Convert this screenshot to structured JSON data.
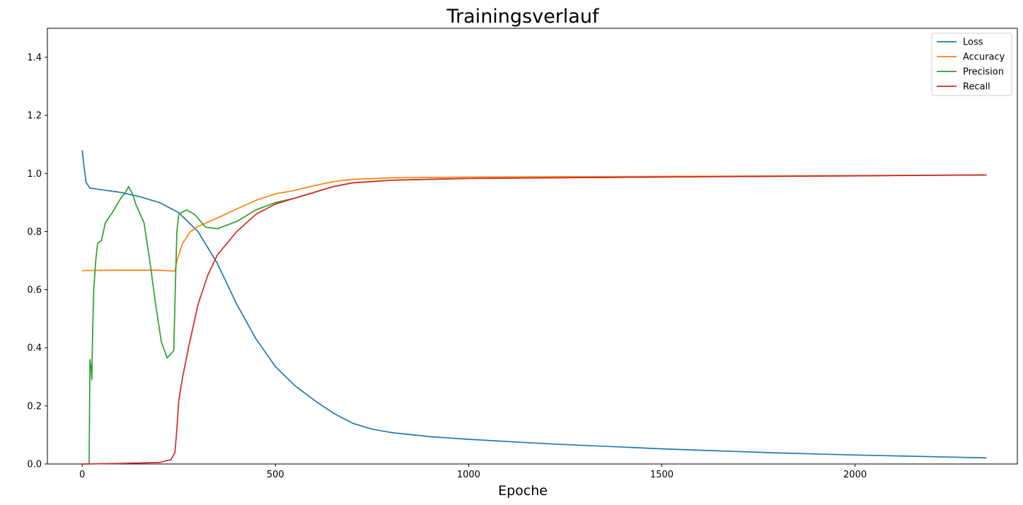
{
  "chart_data": {
    "type": "line",
    "title": "Trainingsverlauf",
    "xlabel": "Epoche",
    "ylabel": "",
    "xlim": [
      -90,
      2420
    ],
    "ylim": [
      0,
      1.5
    ],
    "xticks": [
      0,
      500,
      1000,
      1500,
      2000
    ],
    "yticks": [
      0.0,
      0.2,
      0.4,
      0.6,
      0.8,
      1.0,
      1.2,
      1.4
    ],
    "grid": false,
    "legend_position": "top-right",
    "series": [
      {
        "name": "Loss",
        "color": "#1f77b4",
        "points": [
          [
            0,
            1.08
          ],
          [
            5,
            1.02
          ],
          [
            10,
            0.97
          ],
          [
            20,
            0.95
          ],
          [
            50,
            0.944
          ],
          [
            100,
            0.935
          ],
          [
            150,
            0.92
          ],
          [
            200,
            0.9
          ],
          [
            250,
            0.865
          ],
          [
            300,
            0.8
          ],
          [
            350,
            0.69
          ],
          [
            400,
            0.55
          ],
          [
            450,
            0.43
          ],
          [
            500,
            0.335
          ],
          [
            550,
            0.27
          ],
          [
            600,
            0.22
          ],
          [
            650,
            0.175
          ],
          [
            700,
            0.14
          ],
          [
            750,
            0.12
          ],
          [
            800,
            0.108
          ],
          [
            900,
            0.094
          ],
          [
            1000,
            0.085
          ],
          [
            1200,
            0.07
          ],
          [
            1500,
            0.052
          ],
          [
            1800,
            0.038
          ],
          [
            2000,
            0.031
          ],
          [
            2200,
            0.025
          ],
          [
            2340,
            0.021
          ]
        ]
      },
      {
        "name": "Accuracy",
        "color": "#ff7f0e",
        "points": [
          [
            0,
            0.666
          ],
          [
            100,
            0.667
          ],
          [
            200,
            0.667
          ],
          [
            240,
            0.664
          ],
          [
            245,
            0.7
          ],
          [
            260,
            0.76
          ],
          [
            280,
            0.8
          ],
          [
            300,
            0.818
          ],
          [
            350,
            0.847
          ],
          [
            400,
            0.878
          ],
          [
            450,
            0.908
          ],
          [
            500,
            0.93
          ],
          [
            550,
            0.942
          ],
          [
            600,
            0.958
          ],
          [
            650,
            0.972
          ],
          [
            700,
            0.98
          ],
          [
            800,
            0.985
          ],
          [
            1000,
            0.988
          ],
          [
            1500,
            0.99
          ],
          [
            2000,
            0.993
          ],
          [
            2340,
            0.995
          ]
        ]
      },
      {
        "name": "Precision",
        "color": "#2ca02c",
        "points": [
          [
            0,
            0
          ],
          [
            18,
            0
          ],
          [
            20,
            0.36
          ],
          [
            23,
            0.33
          ],
          [
            25,
            0.29
          ],
          [
            27,
            0.45
          ],
          [
            30,
            0.6
          ],
          [
            35,
            0.7
          ],
          [
            40,
            0.76
          ],
          [
            50,
            0.77
          ],
          [
            60,
            0.83
          ],
          [
            80,
            0.87
          ],
          [
            100,
            0.915
          ],
          [
            110,
            0.93
          ],
          [
            120,
            0.955
          ],
          [
            130,
            0.93
          ],
          [
            140,
            0.89
          ],
          [
            160,
            0.83
          ],
          [
            175,
            0.7
          ],
          [
            190,
            0.55
          ],
          [
            205,
            0.42
          ],
          [
            220,
            0.365
          ],
          [
            230,
            0.38
          ],
          [
            237,
            0.39
          ],
          [
            240,
            0.56
          ],
          [
            245,
            0.8
          ],
          [
            250,
            0.86
          ],
          [
            270,
            0.875
          ],
          [
            290,
            0.86
          ],
          [
            320,
            0.815
          ],
          [
            350,
            0.81
          ],
          [
            400,
            0.835
          ],
          [
            450,
            0.875
          ],
          [
            500,
            0.9
          ],
          [
            550,
            0.915
          ],
          [
            600,
            0.935
          ],
          [
            650,
            0.955
          ],
          [
            700,
            0.968
          ],
          [
            800,
            0.977
          ],
          [
            1000,
            0.983
          ],
          [
            1500,
            0.988
          ],
          [
            2000,
            0.992
          ],
          [
            2340,
            0.995
          ]
        ]
      },
      {
        "name": "Recall",
        "color": "#d62728",
        "points": [
          [
            0,
            0
          ],
          [
            100,
            0.002
          ],
          [
            200,
            0.005
          ],
          [
            230,
            0.015
          ],
          [
            240,
            0.04
          ],
          [
            245,
            0.12
          ],
          [
            250,
            0.22
          ],
          [
            260,
            0.3
          ],
          [
            275,
            0.4
          ],
          [
            300,
            0.55
          ],
          [
            325,
            0.65
          ],
          [
            350,
            0.72
          ],
          [
            400,
            0.8
          ],
          [
            450,
            0.86
          ],
          [
            500,
            0.895
          ],
          [
            550,
            0.915
          ],
          [
            600,
            0.935
          ],
          [
            650,
            0.955
          ],
          [
            700,
            0.968
          ],
          [
            800,
            0.977
          ],
          [
            1000,
            0.983
          ],
          [
            1500,
            0.988
          ],
          [
            2000,
            0.992
          ],
          [
            2340,
            0.995
          ]
        ]
      }
    ]
  }
}
